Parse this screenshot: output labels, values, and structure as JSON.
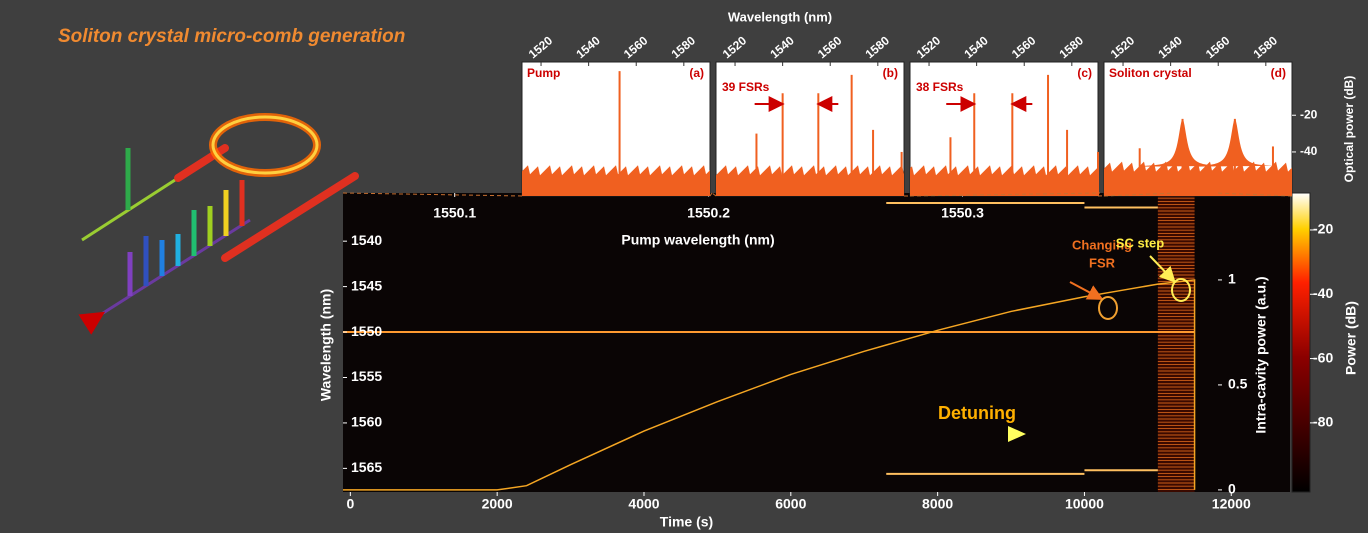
{
  "title": "Soliton crystal micro-comb generation",
  "spectra_xlabel": "Wavelength (nm)",
  "chart_data": [
    {
      "type": "spectrum",
      "name": "Pump",
      "panel": "(a)",
      "xlim": [
        1512,
        1591
      ],
      "xticks": [
        1520,
        1540,
        1560,
        1580
      ],
      "ylim": [
        -64,
        9
      ],
      "noise_floor": -50,
      "color": "#f06020",
      "lines": {
        "x": [
          1553
        ],
        "values": [
          4
        ]
      }
    },
    {
      "type": "spectrum",
      "panel": "(b)",
      "annotation": "39 FSRs",
      "xlim": [
        1512,
        1591
      ],
      "xticks": [
        1520,
        1540,
        1560,
        1580
      ],
      "ylim": [
        -64,
        9
      ],
      "noise_floor": -50,
      "color": "#f06020",
      "lines": {
        "x": [
          1529,
          1540,
          1555,
          1569,
          1578,
          1590
        ],
        "values": [
          -30,
          -8,
          -8,
          2,
          -28,
          -40
        ]
      }
    },
    {
      "type": "spectrum",
      "panel": "(c)",
      "annotation": "38 FSRs",
      "xlim": [
        1512,
        1591
      ],
      "xticks": [
        1520,
        1540,
        1560,
        1580
      ],
      "ylim": [
        -64,
        9
      ],
      "noise_floor": -50,
      "color": "#f06020",
      "lines": {
        "x": [
          1529,
          1539,
          1555,
          1570,
          1578,
          1591
        ],
        "values": [
          -32,
          -8,
          -8,
          2,
          -28,
          -40
        ]
      }
    },
    {
      "type": "spectrum",
      "name": "Soliton crystal",
      "panel": "(d)",
      "ylabel": "Optical power (dB)",
      "xlim": [
        1512,
        1591
      ],
      "xticks": [
        1520,
        1540,
        1560,
        1580
      ],
      "ylim": [
        -64,
        9
      ],
      "yticks": [
        -20,
        -40
      ],
      "noise_floor": -48,
      "color": "#f06020",
      "lines": {
        "x": [
          1527,
          1545,
          1567,
          1583
        ],
        "values": [
          -38,
          -22,
          -22,
          -37
        ]
      },
      "broad_peaks": [
        1545,
        1567
      ]
    },
    {
      "type": "heatmap",
      "xlabel": "Time (s)",
      "ylabel": "Wavelength (nm)",
      "xlim": [
        -100,
        12800
      ],
      "xticks": [
        0,
        2000,
        4000,
        6000,
        8000,
        10000,
        12000
      ],
      "ylim": [
        1567.6,
        1534.7
      ],
      "yticks": [
        1540,
        1545,
        1550,
        1555,
        1560,
        1565
      ],
      "top_axis": {
        "label": "Pump wavelength (nm)",
        "lim": [
          1550.056,
          1550.429
        ],
        "ticks": [
          1550.1,
          1550.2,
          1550.3
        ]
      },
      "y2label": "Intra-cavity power (a.u.)",
      "y2lim": [
        -0.01,
        1.414
      ],
      "y2ticks": [
        0,
        0.5,
        1
      ],
      "colorbar": {
        "label": "Power (dB)",
        "lim": [
          -101.5,
          -8.5
        ],
        "ticks": [
          -20,
          -40,
          -60,
          -80
        ]
      },
      "pump": {
        "wavelength": 1550,
        "start": -100,
        "end": 11500
      },
      "comb_lines": [
        {
          "wavelength": 1535.8,
          "start": 7300,
          "end": 10000
        },
        {
          "wavelength": 1536.3,
          "start": 10000,
          "end": 11000
        },
        {
          "wavelength": 1565.6,
          "start": 7300,
          "end": 10000
        },
        {
          "wavelength": 1565.2,
          "start": 10000,
          "end": 11000
        }
      ],
      "crystal_region": [
        11000,
        11500
      ],
      "trace": {
        "axis": "y2",
        "color": "#f5a623",
        "x": [
          -100,
          2000,
          2400,
          3000,
          4000,
          5000,
          6000,
          7000,
          8000,
          9000,
          10000,
          10500,
          11000,
          11500,
          11500
        ],
        "values": [
          0,
          0,
          0.02,
          0.12,
          0.28,
          0.42,
          0.55,
          0.66,
          0.76,
          0.85,
          0.92,
          0.95,
          0.98,
          1,
          0
        ]
      },
      "annotations": {
        "changing_fsr": [
          "Changing",
          "FSR"
        ],
        "sc_step": "SC step",
        "detuning": "Detuning"
      }
    }
  ]
}
